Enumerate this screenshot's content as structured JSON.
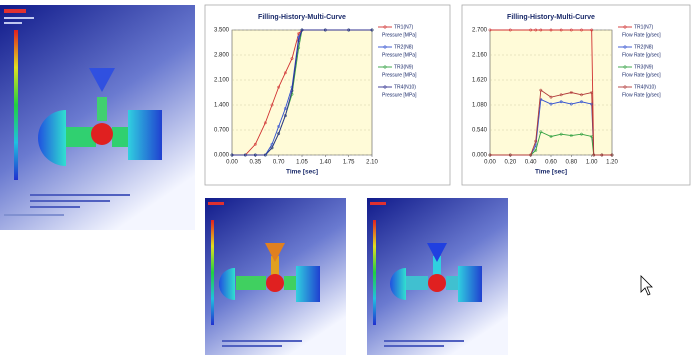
{
  "charts": [
    {
      "type": "line",
      "title": "Filling-History-Multi-Curve",
      "xlabel": "Time [sec]",
      "xlim": [
        0,
        2.1
      ],
      "ylim": [
        0,
        3.5
      ],
      "xticks": [
        {
          "value": 0,
          "label": "0.00"
        },
        0.35,
        {
          "value": 0.7,
          "label": "0.70"
        },
        1.05,
        {
          "value": 1.4,
          "label": "1.40"
        },
        1.75,
        {
          "value": 2.1,
          "label": "2.10"
        }
      ],
      "yticks": [
        {
          "value": 0,
          "label": "0.000"
        },
        {
          "value": 0.7,
          "label": "0.700"
        },
        {
          "value": 1.4,
          "label": "1.400"
        },
        {
          "value": 2.1,
          "label": "2.100"
        },
        {
          "value": 2.8,
          "label": "2.800"
        },
        {
          "value": 3.5,
          "label": "3.500"
        }
      ],
      "x": [
        0,
        0.2,
        0.35,
        0.5,
        0.6,
        0.7,
        0.8,
        0.9,
        1.0,
        1.05,
        1.4,
        1.75,
        2.1
      ],
      "series": [
        {
          "name": "TR1(N7)",
          "unit": "Pressure [MPa]",
          "color": "#d03030",
          "values": [
            0,
            0,
            0.3,
            0.9,
            1.4,
            1.9,
            2.3,
            2.7,
            3.4,
            3.5,
            3.5,
            3.5,
            3.5
          ]
        },
        {
          "name": "TR2(N8)",
          "unit": "Pressure [MPa]",
          "color": "#3050d0",
          "values": [
            0,
            0,
            0,
            0,
            0.3,
            0.8,
            1.3,
            1.9,
            3.3,
            3.5,
            3.5,
            3.5,
            3.5
          ]
        },
        {
          "name": "TR3(N9)",
          "unit": "Pressure [MPa]",
          "color": "#30a040",
          "values": [
            0,
            0,
            0,
            0,
            0.2,
            0.6,
            1.1,
            1.7,
            3.0,
            3.5,
            3.5,
            3.5,
            3.5
          ]
        },
        {
          "name": "TR4(N10)",
          "unit": "Pressure [MPa]",
          "color": "#303090",
          "values": [
            0,
            0,
            0,
            0,
            0.2,
            0.6,
            1.1,
            1.8,
            3.2,
            3.5,
            3.5,
            3.5,
            3.5
          ]
        }
      ]
    },
    {
      "type": "line",
      "title": "Filling-History-Multi-Curve",
      "xlabel": "Time [sec]",
      "xlim": [
        0,
        1.2
      ],
      "ylim": [
        0,
        2.7
      ],
      "xticks": [
        {
          "value": 0,
          "label": "0.00"
        },
        {
          "value": 0.2,
          "label": "0.20"
        },
        {
          "value": 0.4,
          "label": "0.40"
        },
        {
          "value": 0.6,
          "label": "0.60"
        },
        {
          "value": 0.8,
          "label": "0.80"
        },
        {
          "value": 1.0,
          "label": "1.00"
        },
        {
          "value": 1.2,
          "label": "1.20"
        }
      ],
      "yticks": [
        {
          "value": 0,
          "label": "0.000"
        },
        {
          "value": 0.54,
          "label": "0.540"
        },
        {
          "value": 1.08,
          "label": "1.080"
        },
        {
          "value": 1.62,
          "label": "1.620"
        },
        {
          "value": 2.16,
          "label": "2.160"
        },
        {
          "value": 2.7,
          "label": "2.700"
        }
      ],
      "x": [
        0,
        0.2,
        0.4,
        0.45,
        0.5,
        0.6,
        0.7,
        0.8,
        0.9,
        1.0,
        1.02,
        1.1,
        1.2
      ],
      "series": [
        {
          "name": "TR1(N7)",
          "unit": "Flow Rate [g/sec]",
          "color": "#d03030",
          "values": [
            2.7,
            2.7,
            2.7,
            2.7,
            2.7,
            2.7,
            2.7,
            2.7,
            2.7,
            2.7,
            0,
            0,
            0
          ]
        },
        {
          "name": "TR2(N8)",
          "unit": "Flow Rate [g/sec]",
          "color": "#3050d0",
          "values": [
            0,
            0,
            0,
            0.2,
            1.2,
            1.1,
            1.15,
            1.1,
            1.15,
            1.1,
            0,
            0,
            0
          ]
        },
        {
          "name": "TR3(N9)",
          "unit": "Flow Rate [g/sec]",
          "color": "#30a040",
          "values": [
            0,
            0,
            0,
            0.1,
            0.5,
            0.4,
            0.45,
            0.42,
            0.45,
            0.4,
            0,
            0,
            0
          ]
        },
        {
          "name": "TR4(N10)",
          "unit": "Flow Rate [g/sec]",
          "color": "#b03838",
          "values": [
            0,
            0,
            0,
            0.3,
            1.4,
            1.25,
            1.3,
            1.35,
            1.3,
            1.35,
            0,
            0,
            0
          ]
        }
      ]
    }
  ]
}
